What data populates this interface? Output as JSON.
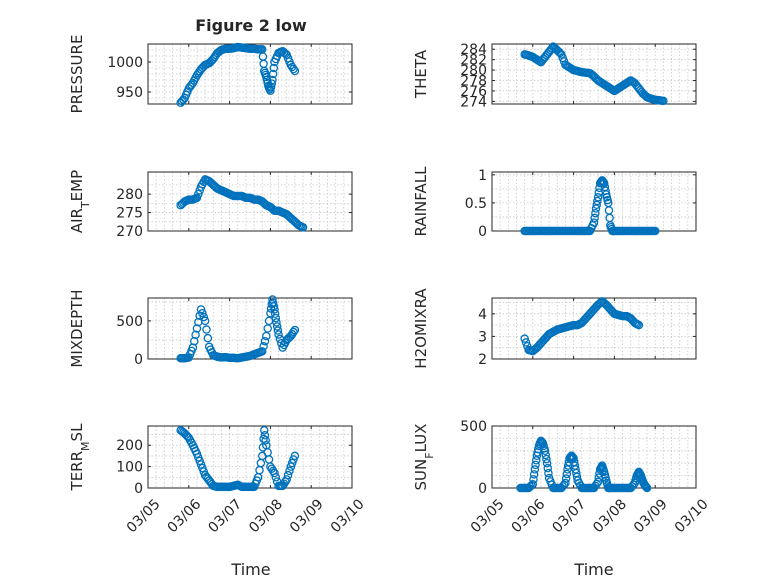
{
  "figure_title": "Figure 2 low",
  "x_tick_labels": [
    "03/05",
    "03/06",
    "03/07",
    "03/08",
    "03/09",
    "03/10"
  ],
  "marker_color": "#0072bd",
  "chart_data": [
    {
      "id": "pressure",
      "type": "scatter",
      "title": "Figure 2 low",
      "ylabel_parts": [
        {
          "t": "PRESSURE"
        }
      ],
      "xlim": [
        0,
        5
      ],
      "ylim": [
        930,
        1030
      ],
      "yticks": [
        950,
        1000
      ],
      "ytick_labels": [
        "950",
        "1000"
      ],
      "minor_ticks": [
        940,
        960,
        970,
        980,
        990,
        1010,
        1020
      ],
      "points": [
        [
          0.8,
          932
        ],
        [
          0.9,
          940
        ],
        [
          1.0,
          956
        ],
        [
          1.1,
          965
        ],
        [
          1.2,
          978
        ],
        [
          1.3,
          988
        ],
        [
          1.4,
          995
        ],
        [
          1.5,
          998
        ],
        [
          1.6,
          1005
        ],
        [
          1.7,
          1015
        ],
        [
          1.8,
          1020
        ],
        [
          1.9,
          1022
        ],
        [
          2.0,
          1022
        ],
        [
          2.1,
          1023
        ],
        [
          2.2,
          1025
        ],
        [
          2.3,
          1024
        ],
        [
          2.4,
          1023
        ],
        [
          2.5,
          1022
        ],
        [
          2.6,
          1022
        ],
        [
          2.7,
          1021
        ],
        [
          2.8,
          1021
        ],
        [
          2.85,
          985
        ],
        [
          2.9,
          975
        ],
        [
          2.95,
          960
        ],
        [
          3.0,
          952
        ],
        [
          3.05,
          970
        ],
        [
          3.1,
          1000
        ],
        [
          3.2,
          1015
        ],
        [
          3.3,
          1018
        ],
        [
          3.4,
          1012
        ],
        [
          3.5,
          995
        ],
        [
          3.6,
          985
        ]
      ]
    },
    {
      "id": "theta",
      "type": "scatter",
      "ylabel_parts": [
        {
          "t": "THETA"
        }
      ],
      "xlim": [
        0,
        5
      ],
      "ylim": [
        273.5,
        285
      ],
      "yticks": [
        274,
        276,
        278,
        280,
        282,
        284
      ],
      "ytick_labels": [
        "274",
        "276",
        "278",
        "280",
        "282",
        "284"
      ],
      "minor_ticks": [],
      "points": [
        [
          0.8,
          283
        ],
        [
          0.9,
          282.8
        ],
        [
          1.0,
          282.5
        ],
        [
          1.1,
          282
        ],
        [
          1.2,
          281.5
        ],
        [
          1.3,
          282.5
        ],
        [
          1.4,
          283.5
        ],
        [
          1.5,
          284.5
        ],
        [
          1.6,
          283.8
        ],
        [
          1.7,
          283
        ],
        [
          1.8,
          281
        ],
        [
          1.9,
          280.5
        ],
        [
          2.0,
          280
        ],
        [
          2.1,
          279.8
        ],
        [
          2.2,
          279.6
        ],
        [
          2.3,
          279.5
        ],
        [
          2.4,
          279.4
        ],
        [
          2.5,
          278.8
        ],
        [
          2.6,
          278
        ],
        [
          2.7,
          277.5
        ],
        [
          2.8,
          277
        ],
        [
          2.9,
          276.5
        ],
        [
          3.0,
          276
        ],
        [
          3.1,
          276.5
        ],
        [
          3.2,
          277
        ],
        [
          3.3,
          277.5
        ],
        [
          3.4,
          278
        ],
        [
          3.5,
          277.5
        ],
        [
          3.6,
          276.5
        ],
        [
          3.7,
          275.5
        ],
        [
          3.8,
          274.8
        ],
        [
          3.9,
          274.5
        ],
        [
          4.0,
          274.3
        ],
        [
          4.1,
          274.2
        ],
        [
          4.2,
          274.1
        ]
      ]
    },
    {
      "id": "air_temp",
      "type": "scatter",
      "ylabel_parts": [
        {
          "t": "AIR"
        },
        {
          "t": "T",
          "sub": true
        },
        {
          "t": "EMP"
        }
      ],
      "xlim": [
        0,
        5
      ],
      "ylim": [
        270,
        286
      ],
      "yticks": [
        270,
        275,
        280
      ],
      "ytick_labels": [
        "270",
        "275",
        "280"
      ],
      "minor_ticks": [
        272.5,
        277.5,
        282.5
      ],
      "points": [
        [
          0.8,
          277
        ],
        [
          0.9,
          278
        ],
        [
          1.0,
          278.5
        ],
        [
          1.1,
          278.5
        ],
        [
          1.2,
          279
        ],
        [
          1.3,
          282
        ],
        [
          1.4,
          284
        ],
        [
          1.5,
          283.5
        ],
        [
          1.6,
          282.5
        ],
        [
          1.7,
          281.5
        ],
        [
          1.8,
          281
        ],
        [
          1.9,
          280.5
        ],
        [
          2.0,
          280
        ],
        [
          2.1,
          279.5
        ],
        [
          2.2,
          279.5
        ],
        [
          2.3,
          279.5
        ],
        [
          2.4,
          279
        ],
        [
          2.5,
          279
        ],
        [
          2.6,
          278.5
        ],
        [
          2.7,
          278.5
        ],
        [
          2.8,
          278
        ],
        [
          2.9,
          277
        ],
        [
          3.0,
          276.5
        ],
        [
          3.1,
          275.5
        ],
        [
          3.2,
          275.5
        ],
        [
          3.3,
          275
        ],
        [
          3.4,
          274.5
        ],
        [
          3.5,
          273.5
        ],
        [
          3.6,
          272.5
        ],
        [
          3.7,
          271.5
        ],
        [
          3.8,
          271
        ]
      ]
    },
    {
      "id": "rainfall",
      "type": "scatter",
      "ylabel_parts": [
        {
          "t": "RAINFALL"
        }
      ],
      "xlim": [
        0,
        5
      ],
      "ylim": [
        0,
        1.05
      ],
      "yticks": [
        0,
        0.5,
        1
      ],
      "ytick_labels": [
        "0",
        "0.5",
        "1"
      ],
      "minor_ticks": [
        0.25,
        0.75
      ],
      "points": [
        [
          0.8,
          0
        ],
        [
          0.9,
          0
        ],
        [
          1.0,
          0
        ],
        [
          1.1,
          0
        ],
        [
          1.2,
          0
        ],
        [
          1.3,
          0
        ],
        [
          1.4,
          0
        ],
        [
          1.5,
          0
        ],
        [
          1.6,
          0
        ],
        [
          1.7,
          0
        ],
        [
          1.8,
          0
        ],
        [
          1.9,
          0
        ],
        [
          2.0,
          0
        ],
        [
          2.1,
          0
        ],
        [
          2.2,
          0
        ],
        [
          2.3,
          0
        ],
        [
          2.4,
          0
        ],
        [
          2.5,
          0.15
        ],
        [
          2.55,
          0.4
        ],
        [
          2.6,
          0.6
        ],
        [
          2.65,
          0.85
        ],
        [
          2.7,
          0.9
        ],
        [
          2.75,
          0.85
        ],
        [
          2.8,
          0.65
        ],
        [
          2.85,
          0.5
        ],
        [
          2.9,
          0.1
        ],
        [
          2.95,
          0
        ],
        [
          3.0,
          0
        ],
        [
          3.1,
          0
        ],
        [
          3.2,
          0
        ],
        [
          3.3,
          0
        ],
        [
          3.4,
          0
        ],
        [
          3.5,
          0
        ],
        [
          3.6,
          0
        ],
        [
          3.7,
          0
        ],
        [
          3.8,
          0
        ],
        [
          3.9,
          0
        ],
        [
          4.0,
          0
        ]
      ]
    },
    {
      "id": "mixdepth",
      "type": "scatter",
      "ylabel_parts": [
        {
          "t": "MIXDEPTH"
        }
      ],
      "xlim": [
        0,
        5
      ],
      "ylim": [
        0,
        800
      ],
      "yticks": [
        0,
        500
      ],
      "ytick_labels": [
        "0",
        "500"
      ],
      "minor_ticks": [
        250,
        750
      ],
      "points": [
        [
          0.8,
          10
        ],
        [
          0.9,
          10
        ],
        [
          1.0,
          20
        ],
        [
          1.1,
          150
        ],
        [
          1.2,
          400
        ],
        [
          1.3,
          650
        ],
        [
          1.4,
          500
        ],
        [
          1.5,
          160
        ],
        [
          1.6,
          50
        ],
        [
          1.7,
          30
        ],
        [
          1.8,
          20
        ],
        [
          1.9,
          25
        ],
        [
          2.0,
          15
        ],
        [
          2.1,
          15
        ],
        [
          2.2,
          10
        ],
        [
          2.3,
          20
        ],
        [
          2.4,
          30
        ],
        [
          2.5,
          40
        ],
        [
          2.6,
          60
        ],
        [
          2.7,
          80
        ],
        [
          2.8,
          100
        ],
        [
          2.9,
          300
        ],
        [
          3.0,
          600
        ],
        [
          3.05,
          780
        ],
        [
          3.1,
          650
        ],
        [
          3.15,
          480
        ],
        [
          3.2,
          320
        ],
        [
          3.3,
          150
        ],
        [
          3.4,
          250
        ],
        [
          3.5,
          300
        ],
        [
          3.6,
          380
        ]
      ]
    },
    {
      "id": "h2omixra",
      "type": "scatter",
      "ylabel_parts": [
        {
          "t": "H2OMIXRA"
        }
      ],
      "xlim": [
        0,
        5
      ],
      "ylim": [
        2,
        4.7
      ],
      "yticks": [
        2,
        3,
        4
      ],
      "ytick_labels": [
        "2",
        "3",
        "4"
      ],
      "minor_ticks": [
        2.5,
        3.5,
        4.5
      ],
      "points": [
        [
          0.8,
          2.9
        ],
        [
          0.9,
          2.4
        ],
        [
          1.0,
          2.35
        ],
        [
          1.1,
          2.5
        ],
        [
          1.2,
          2.7
        ],
        [
          1.3,
          2.9
        ],
        [
          1.4,
          3.1
        ],
        [
          1.5,
          3.2
        ],
        [
          1.6,
          3.3
        ],
        [
          1.7,
          3.35
        ],
        [
          1.8,
          3.4
        ],
        [
          1.9,
          3.45
        ],
        [
          2.0,
          3.5
        ],
        [
          2.1,
          3.5
        ],
        [
          2.2,
          3.6
        ],
        [
          2.3,
          3.8
        ],
        [
          2.4,
          4.0
        ],
        [
          2.5,
          4.2
        ],
        [
          2.6,
          4.4
        ],
        [
          2.7,
          4.55
        ],
        [
          2.8,
          4.4
        ],
        [
          2.9,
          4.2
        ],
        [
          3.0,
          4.0
        ],
        [
          3.1,
          3.95
        ],
        [
          3.2,
          3.9
        ],
        [
          3.3,
          3.9
        ],
        [
          3.4,
          3.8
        ],
        [
          3.5,
          3.6
        ],
        [
          3.6,
          3.5
        ]
      ]
    },
    {
      "id": "terr_msl",
      "type": "scatter",
      "ylabel_parts": [
        {
          "t": "TERR"
        },
        {
          "t": "M",
          "sub": true
        },
        {
          "t": "SL"
        }
      ],
      "xlim": [
        0,
        5
      ],
      "ylim": [
        0,
        290
      ],
      "yticks": [
        0,
        100,
        200
      ],
      "ytick_labels": [
        "0",
        "100",
        "200"
      ],
      "minor_ticks": [
        50,
        150,
        250
      ],
      "points": [
        [
          0.8,
          270
        ],
        [
          0.9,
          255
        ],
        [
          1.0,
          235
        ],
        [
          1.1,
          200
        ],
        [
          1.2,
          160
        ],
        [
          1.3,
          110
        ],
        [
          1.4,
          60
        ],
        [
          1.5,
          35
        ],
        [
          1.6,
          10
        ],
        [
          1.7,
          5
        ],
        [
          1.8,
          5
        ],
        [
          1.9,
          5
        ],
        [
          2.0,
          5
        ],
        [
          2.1,
          10
        ],
        [
          2.2,
          15
        ],
        [
          2.3,
          5
        ],
        [
          2.4,
          5
        ],
        [
          2.5,
          5
        ],
        [
          2.6,
          5
        ],
        [
          2.7,
          50
        ],
        [
          2.8,
          150
        ],
        [
          2.85,
          270
        ],
        [
          2.9,
          200
        ],
        [
          3.0,
          100
        ],
        [
          3.1,
          70
        ],
        [
          3.2,
          10
        ],
        [
          3.3,
          10
        ],
        [
          3.4,
          40
        ],
        [
          3.5,
          100
        ],
        [
          3.6,
          150
        ]
      ]
    },
    {
      "id": "sun_flux",
      "type": "scatter",
      "ylabel_parts": [
        {
          "t": "SUN"
        },
        {
          "t": "F",
          "sub": true
        },
        {
          "t": "LUX"
        }
      ],
      "xlim": [
        0,
        5
      ],
      "ylim": [
        0,
        500
      ],
      "yticks": [
        0,
        500
      ],
      "ytick_labels": [
        "0",
        "500"
      ],
      "minor_ticks": [
        100,
        200,
        300,
        400
      ],
      "points": [
        [
          0.7,
          0
        ],
        [
          0.8,
          0
        ],
        [
          0.9,
          0
        ],
        [
          1.0,
          30
        ],
        [
          1.05,
          150
        ],
        [
          1.1,
          260
        ],
        [
          1.15,
          340
        ],
        [
          1.2,
          380
        ],
        [
          1.25,
          360
        ],
        [
          1.3,
          300
        ],
        [
          1.35,
          200
        ],
        [
          1.4,
          80
        ],
        [
          1.5,
          0
        ],
        [
          1.6,
          0
        ],
        [
          1.7,
          0
        ],
        [
          1.8,
          40
        ],
        [
          1.85,
          150
        ],
        [
          1.9,
          240
        ],
        [
          1.95,
          260
        ],
        [
          2.0,
          240
        ],
        [
          2.05,
          150
        ],
        [
          2.1,
          60
        ],
        [
          2.2,
          0
        ],
        [
          2.3,
          0
        ],
        [
          2.4,
          0
        ],
        [
          2.5,
          0
        ],
        [
          2.6,
          50
        ],
        [
          2.65,
          150
        ],
        [
          2.7,
          180
        ],
        [
          2.75,
          130
        ],
        [
          2.8,
          60
        ],
        [
          2.85,
          0
        ],
        [
          2.9,
          0
        ],
        [
          3.0,
          0
        ],
        [
          3.1,
          0
        ],
        [
          3.2,
          0
        ],
        [
          3.3,
          0
        ],
        [
          3.4,
          0
        ],
        [
          3.5,
          40
        ],
        [
          3.55,
          100
        ],
        [
          3.6,
          130
        ],
        [
          3.65,
          100
        ],
        [
          3.7,
          50
        ],
        [
          3.75,
          20
        ],
        [
          3.8,
          0
        ]
      ]
    }
  ],
  "xlabel": "Time"
}
